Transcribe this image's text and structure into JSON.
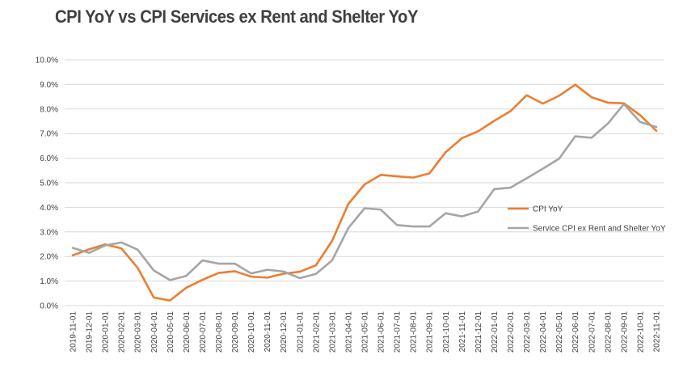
{
  "chart_data": {
    "type": "line",
    "title": "CPI YoY vs CPI Services ex Rent and Shelter YoY",
    "xlabel": "",
    "ylabel": "",
    "ylim": [
      0,
      10
    ],
    "y_ticks": [
      "0.0%",
      "1.0%",
      "2.0%",
      "3.0%",
      "4.0%",
      "5.0%",
      "6.0%",
      "7.0%",
      "8.0%",
      "9.0%",
      "10.0%"
    ],
    "grid": true,
    "legend_position": "right",
    "categories": [
      "2019-11-01",
      "2019-12-01",
      "2020-01-01",
      "2020-02-01",
      "2020-03-01",
      "2020-04-01",
      "2020-05-01",
      "2020-06-01",
      "2020-07-01",
      "2020-08-01",
      "2020-09-01",
      "2020-10-01",
      "2020-11-01",
      "2020-12-01",
      "2021-01-01",
      "2021-02-01",
      "2021-03-01",
      "2021-04-01",
      "2021-05-01",
      "2021-06-01",
      "2021-07-01",
      "2021-08-01",
      "2021-09-01",
      "2021-10-01",
      "2021-11-01",
      "2021-12-01",
      "2022-01-01",
      "2022-02-01",
      "2022-03-01",
      "2022-04-01",
      "2022-05-01",
      "2022-06-01",
      "2022-07-01",
      "2022-08-01",
      "2022-09-01",
      "2022-10-01",
      "2022-11-01"
    ],
    "series": [
      {
        "name": "CPI YoY",
        "color": "#ED7D31",
        "values": [
          2.05,
          2.29,
          2.49,
          2.33,
          1.54,
          0.33,
          0.21,
          0.73,
          1.05,
          1.33,
          1.4,
          1.18,
          1.14,
          1.3,
          1.38,
          1.64,
          2.64,
          4.14,
          4.93,
          5.32,
          5.26,
          5.21,
          5.38,
          6.24,
          6.81,
          7.09,
          7.52,
          7.91,
          8.56,
          8.22,
          8.54,
          8.99,
          8.48,
          8.26,
          8.23,
          7.75,
          7.11
        ]
      },
      {
        "name": "Service CPI ex Rent and Shelter YoY",
        "color": "#A5A5A5",
        "values": [
          2.35,
          2.15,
          2.45,
          2.57,
          2.28,
          1.43,
          1.04,
          1.21,
          1.84,
          1.71,
          1.71,
          1.31,
          1.46,
          1.39,
          1.12,
          1.29,
          1.84,
          3.16,
          3.96,
          3.91,
          3.28,
          3.22,
          3.22,
          3.76,
          3.63,
          3.83,
          4.74,
          4.8,
          5.18,
          5.57,
          5.98,
          6.89,
          6.83,
          7.4,
          8.2,
          7.47,
          7.27
        ]
      }
    ]
  }
}
